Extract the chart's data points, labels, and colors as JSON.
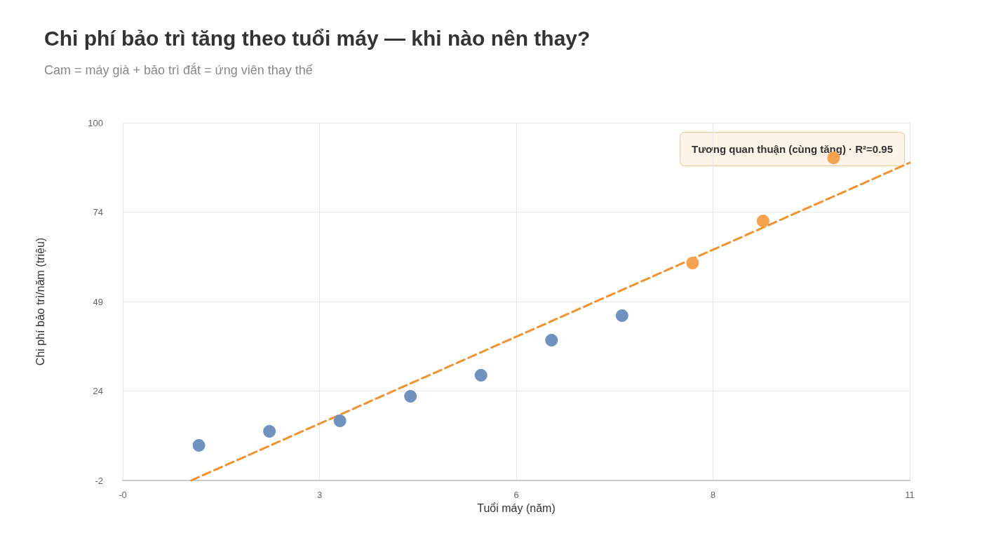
{
  "chart_data": {
    "type": "scatter",
    "title": "Chi phí bảo trì tăng theo tuổi máy — khi nào nên thay?",
    "subtitle": "Cam = máy già + bảo trì đắt = ứng viên thay thế",
    "xlabel": "Tuổi máy (năm)",
    "ylabel": "Chi phí bảo trì/năm (triệu)",
    "annotations": [
      "Tương quan thuận (cùng tăng) · R²=0.95"
    ],
    "xlim": [
      -0.08,
      11.08
    ],
    "xticks": [
      {
        "value": -0.08,
        "label": "-0"
      },
      {
        "value": 2.71,
        "label": "3"
      },
      {
        "value": 5.5,
        "label": "6"
      },
      {
        "value": 8.29,
        "label": "8"
      },
      {
        "value": 11.08,
        "label": "11"
      }
    ],
    "ylim": [
      -2,
      100
    ],
    "yticks": [
      -2,
      {
        "value": 23.5,
        "label": "24"
      },
      49,
      {
        "value": 74.5,
        "label": "74"
      },
      100
    ],
    "grid": true,
    "marker": "circle",
    "series": [
      {
        "color": "#6f93be",
        "x": [
          1,
          2,
          3,
          4,
          5,
          6,
          7
        ],
        "values": [
          8,
          12,
          15,
          22,
          28,
          38,
          45
        ]
      },
      {
        "color": "#f5a24e",
        "x": [
          8,
          9,
          10
        ],
        "values": [
          60,
          72,
          90
        ]
      },
      {
        "type": "line",
        "color": "#f0922f",
        "line_style": "dashed",
        "marker": "none",
        "x": [
          0.89,
          11.08
        ],
        "values": [
          -2,
          88.6
        ]
      }
    ]
  }
}
